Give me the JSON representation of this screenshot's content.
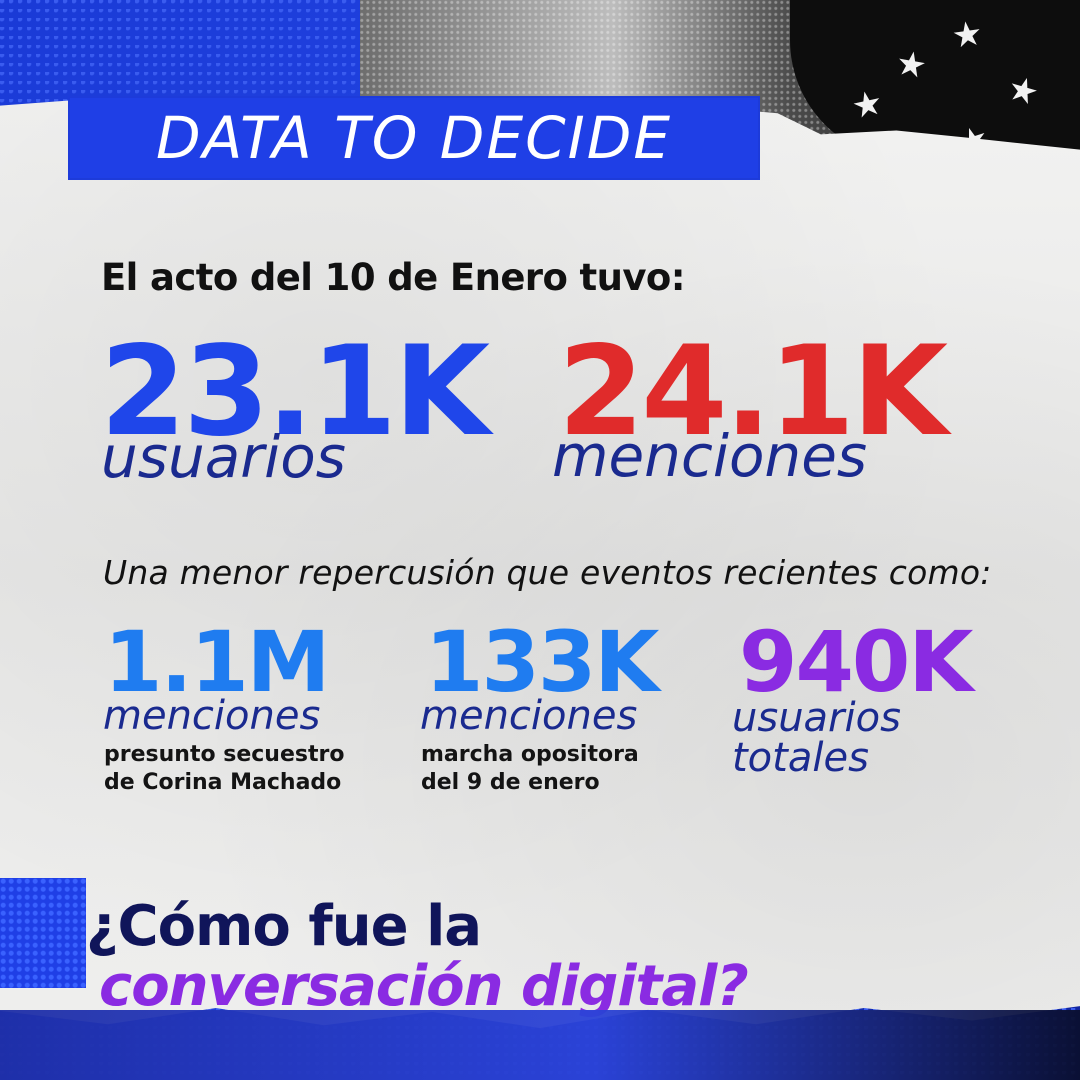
{
  "header": {
    "title": "DATA TO DECIDE"
  },
  "main": {
    "headline": "El acto del 10 de Enero tuvo:",
    "primary_stats": [
      {
        "value": "23.1K",
        "unit": "usuarios",
        "value_color": "#1f46ea"
      },
      {
        "value": "24.1K",
        "unit": "menciones",
        "value_color": "#e02b2b"
      }
    ],
    "comparison_line": "Una menor repercusión que eventos recientes como:",
    "secondary_stats": [
      {
        "value": "1.1M",
        "unit": "menciones",
        "desc_line1": "presunto secuestro",
        "desc_line2": "de Corina Machado",
        "value_color": "#1f7cf0"
      },
      {
        "value": "133K",
        "unit": "menciones",
        "desc_line1": "marcha opositora",
        "desc_line2": "del 9 de enero",
        "value_color": "#1f7cf0"
      },
      {
        "value": "940K",
        "unit_line1": "usuarios",
        "unit_line2": "totales",
        "value_color": "#8a2be2"
      }
    ]
  },
  "footer": {
    "question_line1": "¿Cómo fue la",
    "question_line2": "conversación digital?"
  },
  "colors": {
    "brand_blue": "#1f3fe6",
    "accent_red": "#e02b2b",
    "accent_purple": "#8a2be2",
    "paper": "#eeeeed"
  },
  "icons": {
    "stars": "star-icon"
  }
}
